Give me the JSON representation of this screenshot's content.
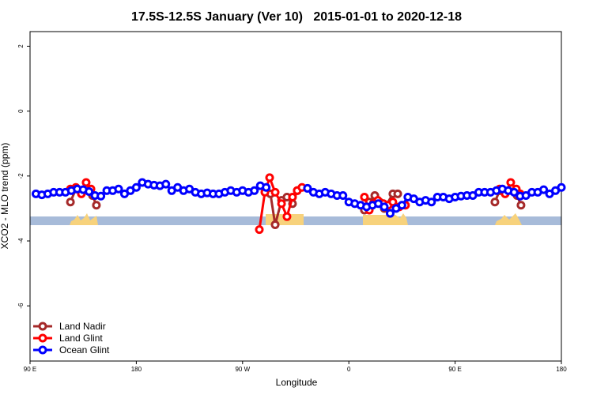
{
  "chart_data": {
    "type": "line",
    "title": "17.5S-12.5S January (Ver 10)   2015-01-01 to 2020-12-18",
    "x_label": "Longitude",
    "y_label": "XCO2 - MLO trend (ppm)",
    "xlim": [
      90,
      540
    ],
    "ylim": [
      -7.7,
      2.45
    ],
    "xticks": [
      {
        "value": 90,
        "label": "90 E"
      },
      180,
      {
        "value": 270,
        "label": "90 W"
      },
      {
        "value": 360,
        "label": "0"
      },
      {
        "value": 450,
        "label": "90 E"
      },
      {
        "value": 540,
        "label": "180"
      }
    ],
    "yticks": [
      -6,
      -4,
      -2,
      0,
      2
    ],
    "legend": "bottom-left",
    "series": [
      {
        "name": "Land Nadir",
        "color": "#a52a2a",
        "x": [
          124.2,
          128.8,
          138.2,
          142.9,
          146.2,
          null,
          293.6,
          297.6,
          303.0,
          307.6,
          312.3,
          316.3,
          null,
          373.2,
          377.3,
          382.0,
          386.0,
          390.0,
          397.3,
          401.4,
          null,
          483.7,
          487.7,
          502.5,
          505.8
        ],
        "values": [
          -2.8,
          -2.4,
          -2.4,
          -2.6,
          -2.9,
          null,
          -2.55,
          -3.5,
          -2.75,
          -2.65,
          -2.85,
          -2.45,
          null,
          -3.05,
          -2.8,
          -2.6,
          -2.8,
          -3.0,
          -2.55,
          -2.55,
          null,
          -2.8,
          -2.45,
          -2.6,
          -2.9
        ]
      },
      {
        "name": "Land Glint",
        "color": "#ff0000",
        "x": [
          124.2,
          128.8,
          133.5,
          137.5,
          141.6,
          null,
          284.2,
          288.9,
          292.9,
          297.6,
          303.0,
          307.6,
          312.3,
          316.3,
          320.3,
          null,
          373.2,
          377.3,
          380.6,
          384.6,
          389.3,
          393.3,
          397.3,
          402.7,
          408.0,
          null,
          487.7,
          492.4,
          497.1,
          501.8,
          505.1
        ],
        "values": [
          -2.4,
          -2.35,
          -2.55,
          -2.2,
          -2.4,
          null,
          -3.65,
          -2.5,
          -2.05,
          -2.5,
          -2.85,
          -3.25,
          -2.65,
          -2.45,
          -2.35,
          null,
          -2.65,
          -3.05,
          -2.85,
          -2.75,
          -2.85,
          -2.9,
          -2.8,
          -2.95,
          -2.9,
          null,
          -2.4,
          -2.55,
          -2.2,
          -2.4,
          -2.55
        ]
      },
      {
        "name": "Ocean Glint",
        "color": "#0000ff",
        "x": [
          95,
          100,
          105,
          110,
          115,
          120,
          125,
          130,
          135,
          140,
          145,
          150,
          155,
          160,
          165,
          170,
          175,
          180,
          185,
          190,
          195,
          200,
          205,
          210,
          215,
          220,
          225,
          230,
          235,
          240,
          245,
          250,
          255,
          260,
          265,
          270,
          275,
          280,
          285,
          290,
          295,
          300,
          305,
          310,
          315,
          320,
          325,
          330,
          335,
          340,
          345,
          350,
          355,
          360,
          365,
          370,
          375,
          380,
          385,
          390,
          395,
          400,
          405,
          410,
          415,
          420,
          425,
          430,
          435,
          440,
          445,
          450,
          455,
          460,
          465,
          470,
          475,
          480,
          485,
          490,
          495,
          500,
          505,
          510,
          515,
          520,
          525,
          530,
          535,
          540
        ],
        "values": [
          -2.55,
          -2.58,
          -2.55,
          -2.5,
          -2.5,
          -2.5,
          -2.45,
          -2.4,
          -2.42,
          -2.48,
          -2.6,
          -2.62,
          -2.45,
          -2.45,
          -2.4,
          -2.55,
          -2.45,
          -2.35,
          -2.2,
          -2.25,
          -2.28,
          -2.3,
          -2.25,
          -2.45,
          -2.35,
          -2.45,
          -2.4,
          -2.5,
          -2.55,
          -2.52,
          -2.55,
          -2.55,
          -2.5,
          -2.45,
          -2.5,
          -2.45,
          -2.5,
          -2.45,
          -2.3,
          -2.35,
          null,
          null,
          null,
          null,
          null,
          null,
          -2.38,
          -2.5,
          -2.55,
          -2.5,
          -2.55,
          -2.6,
          -2.6,
          -2.8,
          -2.85,
          -2.9,
          -2.95,
          -2.9,
          -2.85,
          -2.95,
          -3.15,
          -3.0,
          -2.9,
          -2.65,
          -2.7,
          -2.8,
          -2.75,
          -2.8,
          -2.65,
          -2.65,
          -2.7,
          -2.65,
          -2.62,
          -2.6,
          -2.6,
          -2.5,
          -2.5,
          -2.5,
          -2.45,
          -2.4,
          -2.45,
          -2.5,
          -2.62,
          -2.6,
          -2.5,
          -2.5,
          -2.42,
          -2.55,
          -2.45,
          -2.35
        ]
      }
    ]
  }
}
